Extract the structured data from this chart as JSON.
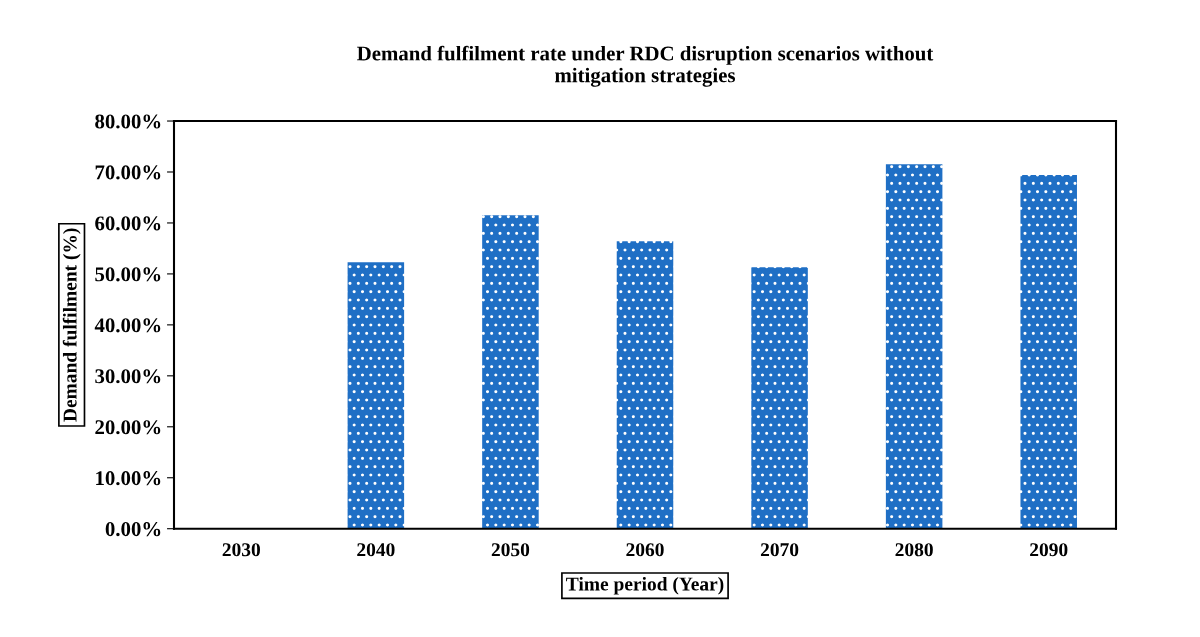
{
  "chart_data": {
    "type": "bar",
    "title": "Demand fulfilment rate under RDC disruption scenarios without\nmitigation strategies",
    "xlabel": "Time period (Year)",
    "ylabel": "Demand fulfilment (%)",
    "categories": [
      "2030",
      "2040",
      "2050",
      "2060",
      "2070",
      "2080",
      "2090"
    ],
    "values": [
      0,
      52.3,
      61.5,
      56.4,
      51.3,
      71.5,
      69.4
    ],
    "color": "#1f6fc5",
    "ylim": [
      0,
      80
    ],
    "yticks": [
      {
        "value": 0,
        "label": "0.00%"
      },
      {
        "value": 10,
        "label": "10.00%"
      },
      {
        "value": 20,
        "label": "20.00%"
      },
      {
        "value": 30,
        "label": "30.00%"
      },
      {
        "value": 40,
        "label": "40.00%"
      },
      {
        "value": 50,
        "label": "50.00%"
      },
      {
        "value": 60,
        "label": "60.00%"
      },
      {
        "value": 70,
        "label": "70.00%"
      },
      {
        "value": 80,
        "label": "80.00%"
      }
    ],
    "grid": false,
    "legend": false
  }
}
